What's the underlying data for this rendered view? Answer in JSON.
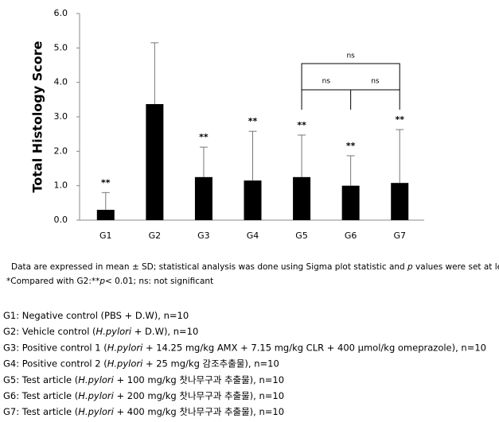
{
  "chart_data": {
    "type": "bar",
    "y_label": "Total Histology Score",
    "categories": [
      "G1",
      "G2",
      "G3",
      "G4",
      "G5",
      "G6",
      "G7"
    ],
    "values": [
      0.3,
      3.37,
      1.25,
      1.15,
      1.25,
      1.0,
      1.08
    ],
    "errors": [
      0.5,
      1.78,
      0.87,
      1.43,
      1.22,
      0.87,
      1.55
    ],
    "color": "#000000",
    "annotations": [
      "**",
      null,
      "**",
      "**",
      "**",
      "**",
      "**"
    ],
    "significance": [
      "ns",
      "ns",
      "ns"
    ],
    "ylim": [
      0,
      6
    ],
    "yticks": [
      {
        "value": 0,
        "label": "0.0"
      },
      {
        "value": 1,
        "label": "1.0"
      },
      {
        "value": 2,
        "label": "2.0"
      },
      {
        "value": 3,
        "label": "3.0"
      },
      {
        "value": 4,
        "label": "4.0"
      },
      {
        "value": 5,
        "label": "5.0"
      },
      {
        "value": 6,
        "label": "6.0"
      }
    ]
  },
  "caption": [
    [
      "Data are expressed in mean ± SD; statistical analysis was done using Sigma plot statistic and ",
      "p",
      " values were set at level;"
    ],
    [
      "*Compared with G2:**",
      "p",
      "< 0.01; ns: not significant"
    ]
  ],
  "groups": [
    [
      "G1: Negative control (PBS + D.W), n=10"
    ],
    [
      "G2: Vehicle control (",
      "H.pylori",
      " + D.W), n=10"
    ],
    [
      "G3: Positive control 1 (",
      "H.pylori",
      " + 14.25 mg/kg AMX + 7.15 mg/kg CLR + 400 μmol/kg omeprazole), n=10"
    ],
    [
      "G4: Positive control 2 (",
      "H.pylori",
      " + 25 mg/kg 감조추출물), n=10"
    ],
    [
      "G5: Test article (",
      "H.pylori",
      " + 100 mg/kg 찻나무구과 추출물), n=10"
    ],
    [
      "G6: Test article (",
      "H.pylori",
      " + 200 mg/kg 찻나무구과 추출물), n=10"
    ],
    [
      "G7: Test article (",
      "H.pylori",
      " + 400 mg/kg 찻나무구과 추출물), n=10"
    ]
  ]
}
